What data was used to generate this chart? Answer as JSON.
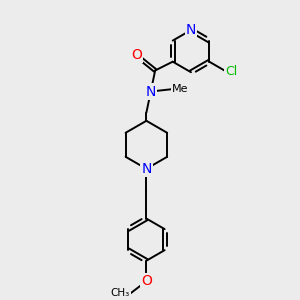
{
  "background_color": "#ececec",
  "atom_colors": {
    "N": "#0000ff",
    "O": "#ff0000",
    "Cl": "#00bb00",
    "C": "#000000"
  },
  "bond_color": "#000000",
  "fig_size": [
    3.0,
    3.0
  ],
  "dpi": 100,
  "xlim": [
    0,
    10
  ],
  "ylim": [
    0,
    10
  ],
  "lw": 1.4,
  "fs": 9
}
